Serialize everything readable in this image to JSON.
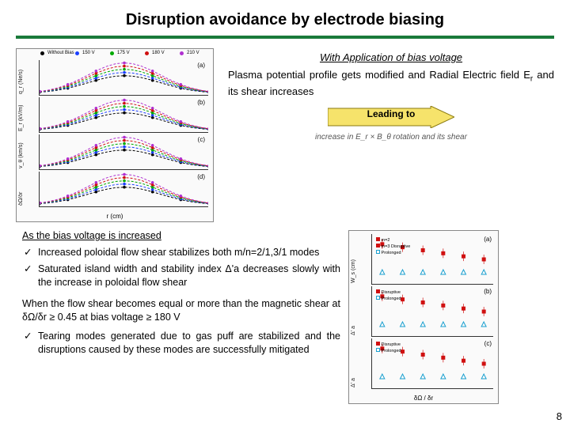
{
  "title": "Disruption avoidance by electrode biasing",
  "subtitle": "With Application of bias voltage",
  "intro_text": "Plasma potential profile gets modified and Radial Electric field E",
  "intro_sub": "r",
  "intro_text2": " and its shear increases",
  "arrow_label": "Leading to",
  "formula_text": "increase in E_r × B_θ rotation and its shear",
  "heading2": "As the bias voltage is increased",
  "bullets1": [
    "Increased poloidal flow shear stabilizes both m/n=2/1,3/1 modes",
    "Saturated island width and stability index Δ'a decreases slowly with the increase in poloidal flow shear"
  ],
  "mid_para": "When the flow shear becomes equal or more than the magnetic shear at δΩ/δr ≥ 0.45 at bias voltage ≥ 180 V",
  "bullets2": [
    "Tearing modes generated due to gas puff are stabilized and the disruptions caused by these modes are successfully mitigated"
  ],
  "page_num": "8",
  "left_chart": {
    "xlabel": "r (cm)",
    "x_range": [
      23.5,
      26.5
    ],
    "panels": [
      {
        "tag": "(a)",
        "ylabel": "q_r (Ne/s)",
        "y_range": [
          40,
          120
        ]
      },
      {
        "tag": "(b)",
        "ylabel": "E_r (kV/m)",
        "y_range": [
          5,
          30
        ]
      },
      {
        "tag": "(c)",
        "ylabel": "v_θ (km/s)",
        "y_range": [
          0.4,
          1.2
        ]
      },
      {
        "tag": "(d)",
        "ylabel": "δΩ/δr",
        "y_range": [
          0.2,
          0.6
        ]
      }
    ],
    "legend": [
      {
        "label": "Without Bias",
        "color": "#000000"
      },
      {
        "label": "150 V",
        "color": "#1a3fff"
      },
      {
        "label": "175 V",
        "color": "#00aa00"
      },
      {
        "label": "180 V",
        "color": "#d01010"
      },
      {
        "label": "210 V",
        "color": "#b030d0"
      }
    ],
    "curve_shape": {
      "type": "hump",
      "peak_x": 25.0
    }
  },
  "right_chart": {
    "xlabel": "δΩ / δr",
    "x_range": [
      0.2,
      0.7
    ],
    "panels": [
      {
        "tag": "(a)",
        "ylabel": "W_s (cm)",
        "y_range": [
          0,
          2.0
        ]
      },
      {
        "tag": "(b)",
        "ylabel": "Δ' a",
        "y_range": [
          0,
          6
        ]
      },
      {
        "tag": "(c)",
        "ylabel": "Δ' a",
        "y_range": [
          -2,
          2
        ]
      }
    ],
    "legend_a": [
      {
        "label": "m=2",
        "marker": "square",
        "color": "#d01010"
      },
      {
        "label": "m=3 Disruptive",
        "marker": "square",
        "color": "#d01010"
      },
      {
        "label": "Prolonged",
        "marker": "triangle",
        "color": "#1aa0d0"
      }
    ],
    "legend_bc": [
      {
        "label": "Disruptive",
        "marker": "square",
        "color": "#d01010"
      },
      {
        "label": "Prolonged",
        "marker": "triangle",
        "color": "#1aa0d0"
      }
    ]
  },
  "arrow": {
    "fill": "#f6e36b",
    "stroke": "#8a7a10",
    "width": 160,
    "height": 28
  },
  "accent_color": "#1a7a3a"
}
